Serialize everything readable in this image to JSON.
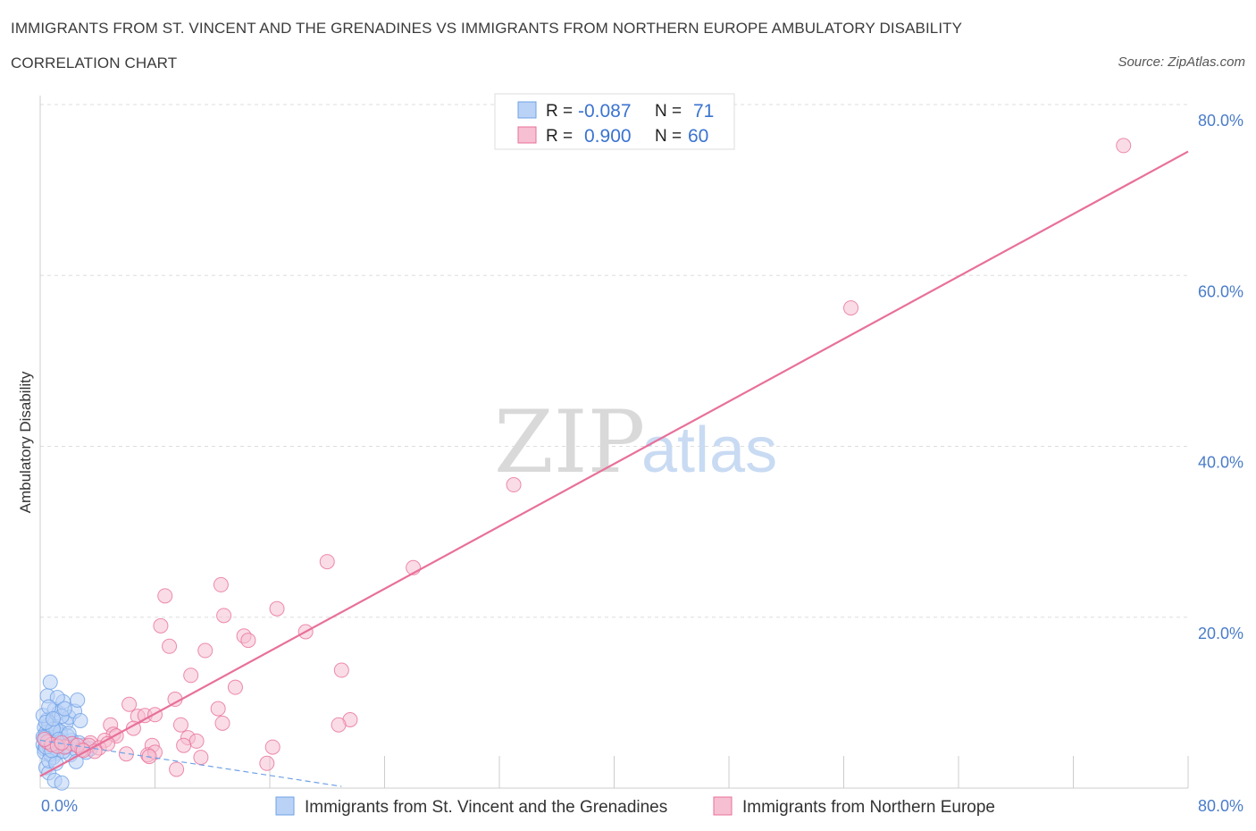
{
  "title_line1": "IMMIGRANTS FROM ST. VINCENT AND THE GRENADINES VS IMMIGRANTS FROM NORTHERN EUROPE AMBULATORY DISABILITY",
  "title_line2": "CORRELATION CHART",
  "source": "Source: ZipAtlas.com",
  "watermark": {
    "zip": "ZIP",
    "atlas": "atlas"
  },
  "colors": {
    "blue": "#6fa1e6",
    "blue_fill": "#b9d2f5",
    "pink": "#e8709a",
    "pink_fill": "#f6bfd2",
    "axis_text": "#4a7cc9"
  },
  "chart_data": {
    "type": "scatter",
    "title": "IMMIGRANTS FROM ST. VINCENT AND THE GRENADINES VS IMMIGRANTS FROM NORTHERN EUROPE AMBULATORY DISABILITY CORRELATION CHART",
    "xlabel": "",
    "ylabel": "Ambulatory Disability",
    "xlim": [
      0,
      80
    ],
    "ylim": [
      0,
      80
    ],
    "x_tick_labels": [
      "0.0%",
      "80.0%"
    ],
    "y_ticks": [
      20,
      40,
      60,
      80
    ],
    "y_tick_labels": [
      "20.0%",
      "40.0%",
      "60.0%",
      "80.0%"
    ],
    "grid": true,
    "legend_stats": [
      {
        "r_label": "R =",
        "r_value": "-0.087",
        "n_label": "N =",
        "n_value": "71"
      },
      {
        "r_label": "R =",
        "r_value": "0.900",
        "n_label": "N =",
        "n_value": "60"
      }
    ],
    "series": [
      {
        "name": "Immigrants from St. Vincent and the Grenadines",
        "color": "#6fa1e6",
        "R": -0.087,
        "N": 71,
        "trend": {
          "x": [
            0,
            21
          ],
          "y": [
            5.6,
            0.2
          ],
          "style": "dashed"
        },
        "points": [
          [
            0.2,
            5.1
          ],
          [
            0.3,
            4.6
          ],
          [
            0.4,
            5.8
          ],
          [
            0.5,
            6.2
          ],
          [
            0.6,
            4.9
          ],
          [
            0.7,
            5.5
          ],
          [
            0.3,
            7.1
          ],
          [
            0.5,
            8.0
          ],
          [
            0.8,
            6.8
          ],
          [
            0.9,
            5.3
          ],
          [
            1.0,
            4.7
          ],
          [
            1.1,
            6.0
          ],
          [
            0.4,
            6.5
          ],
          [
            0.6,
            7.4
          ],
          [
            0.7,
            5.0
          ],
          [
            1.2,
            5.8
          ],
          [
            1.3,
            4.4
          ],
          [
            1.4,
            6.3
          ],
          [
            1.5,
            5.1
          ],
          [
            0.2,
            8.5
          ],
          [
            0.5,
            10.8
          ],
          [
            0.7,
            12.4
          ],
          [
            1.0,
            9.2
          ],
          [
            1.3,
            8.8
          ],
          [
            1.6,
            10.1
          ],
          [
            1.8,
            7.6
          ],
          [
            2.0,
            8.3
          ],
          [
            1.7,
            5.4
          ],
          [
            1.9,
            4.8
          ],
          [
            2.2,
            5.6
          ],
          [
            2.4,
            9.0
          ],
          [
            2.6,
            10.3
          ],
          [
            2.8,
            7.9
          ],
          [
            0.4,
            2.4
          ],
          [
            0.6,
            1.8
          ],
          [
            1.0,
            0.9
          ],
          [
            1.5,
            0.6
          ],
          [
            1.2,
            4.1
          ],
          [
            0.9,
            3.6
          ],
          [
            2.1,
            3.9
          ],
          [
            2.5,
            4.5
          ],
          [
            3.0,
            5.0
          ],
          [
            0.3,
            4.2
          ],
          [
            0.8,
            5.9
          ],
          [
            1.1,
            7.0
          ],
          [
            1.4,
            6.6
          ],
          [
            1.6,
            4.3
          ],
          [
            0.5,
            5.5
          ],
          [
            0.2,
            6.0
          ],
          [
            0.7,
            4.0
          ],
          [
            1.9,
            6.1
          ],
          [
            2.3,
            5.2
          ],
          [
            3.5,
            4.6
          ],
          [
            0.4,
            4.8
          ],
          [
            0.9,
            6.9
          ],
          [
            1.3,
            5.7
          ],
          [
            1.8,
            4.9
          ],
          [
            2.7,
            5.3
          ],
          [
            0.6,
            3.2
          ],
          [
            1.1,
            2.9
          ],
          [
            0.3,
            5.9
          ],
          [
            0.8,
            4.4
          ],
          [
            1.5,
            8.4
          ],
          [
            2.0,
            6.4
          ],
          [
            0.4,
            7.7
          ],
          [
            1.2,
            10.6
          ],
          [
            0.6,
            9.5
          ],
          [
            3.2,
            4.2
          ],
          [
            2.5,
            3.1
          ],
          [
            1.7,
            9.3
          ],
          [
            0.9,
            8.1
          ]
        ]
      },
      {
        "name": "Immigrants from Northern Europe",
        "color": "#e8709a",
        "R": 0.9,
        "N": 60,
        "trend": {
          "x": [
            0,
            80
          ],
          "y": [
            1.4,
            74.5
          ],
          "style": "solid"
        },
        "points": [
          [
            75.5,
            75.2
          ],
          [
            56.5,
            56.2
          ],
          [
            33.0,
            35.5
          ],
          [
            20.0,
            26.5
          ],
          [
            26.0,
            25.8
          ],
          [
            12.6,
            23.8
          ],
          [
            8.7,
            22.5
          ],
          [
            16.5,
            21.0
          ],
          [
            12.8,
            20.2
          ],
          [
            8.4,
            19.0
          ],
          [
            18.5,
            18.3
          ],
          [
            14.2,
            17.8
          ],
          [
            14.5,
            17.3
          ],
          [
            9.0,
            16.6
          ],
          [
            11.5,
            16.1
          ],
          [
            21.0,
            13.8
          ],
          [
            10.5,
            13.2
          ],
          [
            13.6,
            11.8
          ],
          [
            9.4,
            10.4
          ],
          [
            6.2,
            9.8
          ],
          [
            12.4,
            9.3
          ],
          [
            21.6,
            8.0
          ],
          [
            6.8,
            8.4
          ],
          [
            7.3,
            8.5
          ],
          [
            8.0,
            8.6
          ],
          [
            12.7,
            7.6
          ],
          [
            4.9,
            7.4
          ],
          [
            9.8,
            7.4
          ],
          [
            20.8,
            7.4
          ],
          [
            6.5,
            7.0
          ],
          [
            5.1,
            6.3
          ],
          [
            5.3,
            6.1
          ],
          [
            10.3,
            5.9
          ],
          [
            10.9,
            5.5
          ],
          [
            4.5,
            5.6
          ],
          [
            3.5,
            5.3
          ],
          [
            2.2,
            5.2
          ],
          [
            7.8,
            5.0
          ],
          [
            10.0,
            5.0
          ],
          [
            3.4,
            5.0
          ],
          [
            4.1,
            4.7
          ],
          [
            2.9,
            4.5
          ],
          [
            1.7,
            4.8
          ],
          [
            16.2,
            4.8
          ],
          [
            3.8,
            4.3
          ],
          [
            6.0,
            4.0
          ],
          [
            7.5,
            3.9
          ],
          [
            11.2,
            3.6
          ],
          [
            8.0,
            4.2
          ],
          [
            7.6,
            3.7
          ],
          [
            0.5,
            5.4
          ],
          [
            0.8,
            5.1
          ],
          [
            1.2,
            4.9
          ],
          [
            1.5,
            5.3
          ],
          [
            2.6,
            5.0
          ],
          [
            9.5,
            2.2
          ],
          [
            15.8,
            2.9
          ],
          [
            3.0,
            4.4
          ],
          [
            0.3,
            5.7
          ],
          [
            4.7,
            5.2
          ]
        ]
      }
    ]
  }
}
